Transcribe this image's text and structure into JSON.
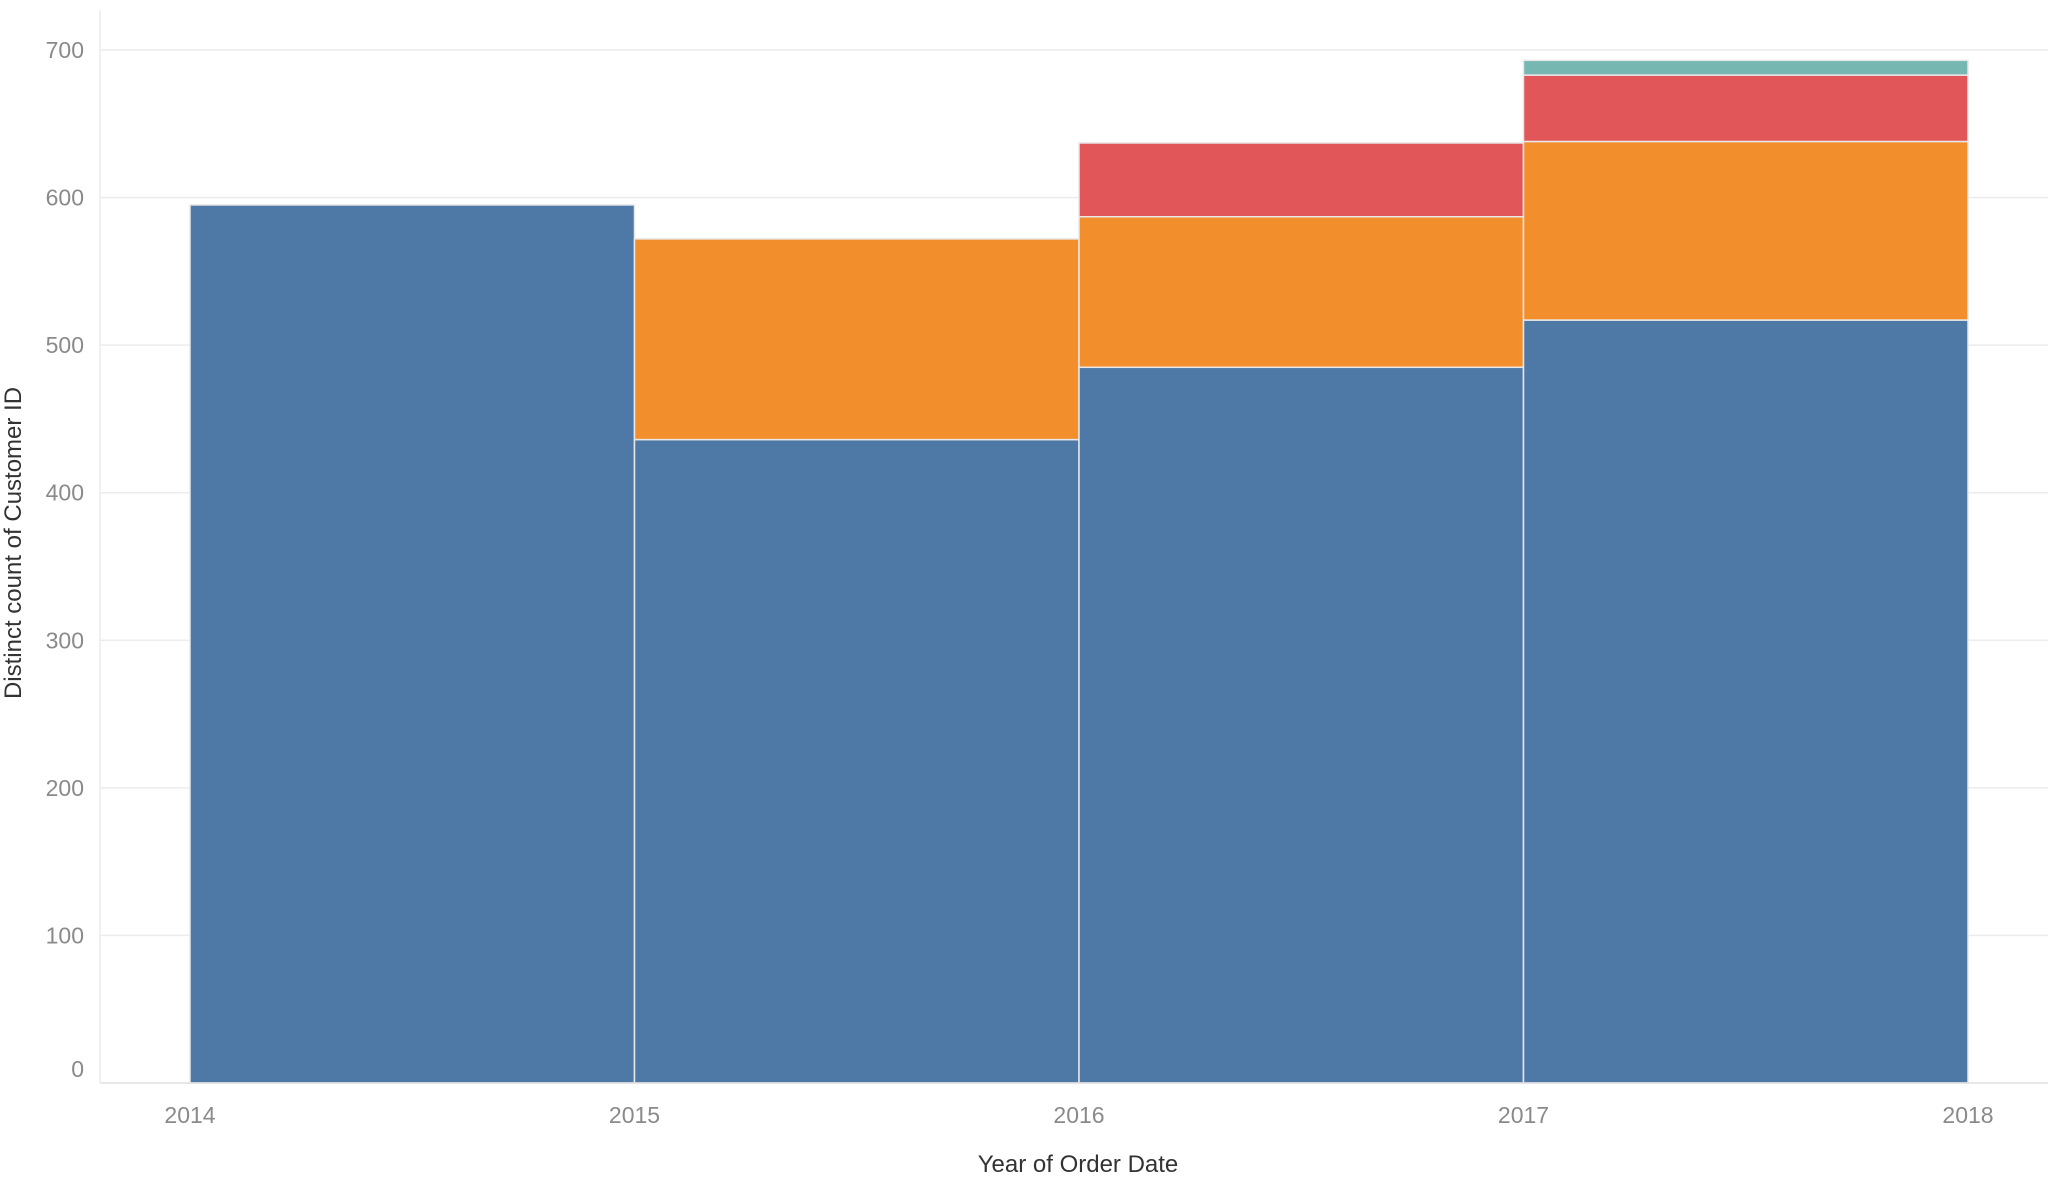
{
  "chart_data": {
    "type": "bar",
    "stacked": true,
    "title": "",
    "xlabel": "Year of Order Date",
    "ylabel": "Distinct count of Customer ID",
    "x_ticks": [
      "2014",
      "2015",
      "2016",
      "2017",
      "2018"
    ],
    "y_ticks": [
      "0",
      "100",
      "200",
      "300",
      "400",
      "500",
      "600",
      "700"
    ],
    "ylim": [
      0,
      700
    ],
    "grid": true,
    "legend": "none",
    "bins": [
      {
        "start": "2014",
        "end": "2015"
      },
      {
        "start": "2015",
        "end": "2016"
      },
      {
        "start": "2016",
        "end": "2017"
      },
      {
        "start": "2017",
        "end": "2018"
      }
    ],
    "series": [
      {
        "color": "#4e79a7",
        "values": [
          595,
          436,
          485,
          517
        ]
      },
      {
        "color": "#f28e2b",
        "values": [
          0,
          136,
          102,
          121
        ]
      },
      {
        "color": "#e15759",
        "values": [
          0,
          0,
          50,
          45
        ]
      },
      {
        "color": "#76b7b2",
        "values": [
          0,
          0,
          0,
          10
        ]
      }
    ]
  }
}
